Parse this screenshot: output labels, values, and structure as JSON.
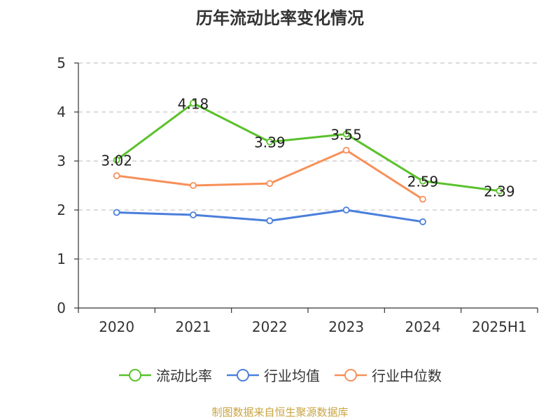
{
  "title": "历年流动比率变化情况",
  "source": "制图数据来自恒生聚源数据库",
  "colors": {
    "current_ratio": "#5ac12d",
    "industry_mean": "#4a7fdc",
    "industry_median": "#f79059",
    "grid": "#c8c8c8",
    "axis": "#333333"
  },
  "legend": [
    {
      "name": "流动比率",
      "color": "#5ac12d"
    },
    {
      "name": "行业均值",
      "color": "#4a7fdc"
    },
    {
      "name": "行业中位数",
      "color": "#f79059"
    }
  ],
  "chart_data": {
    "type": "line",
    "title": "历年流动比率变化情况",
    "categories": [
      "2020",
      "2021",
      "2022",
      "2023",
      "2024",
      "2025H1"
    ],
    "ylim": [
      0,
      5
    ],
    "yticks": [
      "0",
      "1",
      "2",
      "3",
      "4",
      "5"
    ],
    "grid": true,
    "legend_position": "bottom",
    "series": [
      {
        "name": "流动比率",
        "color": "#5ac12d",
        "values": [
          3.02,
          4.18,
          3.39,
          3.55,
          2.59,
          2.39
        ],
        "labels": [
          "3.02",
          "4.18",
          "3.39",
          "3.55",
          "2.59",
          "2.39"
        ]
      },
      {
        "name": "行业均值",
        "color": "#4a7fdc",
        "values": [
          1.95,
          1.9,
          1.78,
          2.0,
          1.76,
          null
        ]
      },
      {
        "name": "行业中位数",
        "color": "#f79059",
        "values": [
          2.7,
          2.5,
          2.54,
          3.22,
          2.22,
          null
        ]
      }
    ]
  }
}
